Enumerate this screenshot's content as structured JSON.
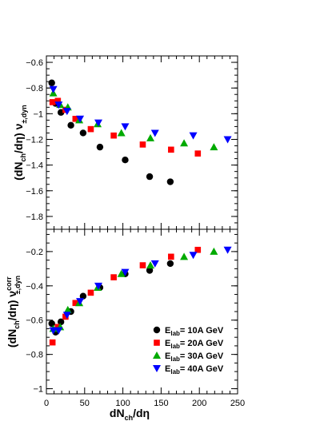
{
  "chart_data": [
    {
      "type": "scatter",
      "panel": "top",
      "ylabel": {
        "main": "(dN",
        "sub1": "ch",
        "mid": "/dη) ν",
        "sub2": "±,dyn"
      },
      "ylim": [
        -1.9,
        -0.55
      ],
      "xlim": [
        0,
        250
      ],
      "yticks": [
        -0.6,
        -0.8,
        -1.0,
        -1.2,
        -1.4,
        -1.6,
        -1.8
      ],
      "ytick_labels": [
        "−0.6",
        "−0.8",
        "−1",
        "−1.2",
        "−1.4",
        "−1.6",
        "−1.8"
      ],
      "grid": false,
      "series": [
        {
          "name": "10A GeV",
          "marker": "circle",
          "color": "#000000",
          "x": [
            7,
            12,
            19,
            32,
            48,
            70,
            103,
            135,
            162
          ],
          "y": [
            -0.76,
            -0.92,
            -0.99,
            -1.09,
            -1.15,
            -1.26,
            -1.36,
            -1.49,
            -1.53
          ]
        },
        {
          "name": "20A GeV",
          "marker": "square",
          "color": "#ff0000",
          "x": [
            8,
            15,
            25,
            38,
            58,
            88,
            126,
            163,
            198
          ],
          "y": [
            -0.91,
            -0.9,
            -0.97,
            -1.04,
            -1.12,
            -1.17,
            -1.24,
            -1.28,
            -1.31
          ]
        },
        {
          "name": "30A GeV",
          "marker": "triangle-up",
          "color": "#00aa00",
          "x": [
            9,
            18,
            28,
            43,
            67,
            98,
            136,
            180,
            219
          ],
          "y": [
            -0.84,
            -0.93,
            -0.95,
            -1.05,
            -1.08,
            -1.15,
            -1.19,
            -1.23,
            -1.26
          ]
        },
        {
          "name": "40A GeV",
          "marker": "triangle-down",
          "color": "#0000ff",
          "x": [
            9,
            16,
            27,
            44,
            68,
            103,
            142,
            192,
            237
          ],
          "y": [
            -0.81,
            -0.93,
            -0.98,
            -1.04,
            -1.07,
            -1.1,
            -1.15,
            -1.17,
            -1.2
          ]
        }
      ]
    },
    {
      "type": "scatter",
      "panel": "bottom",
      "ylabel": {
        "main": "(dN",
        "sub1": "ch",
        "mid": "/dη) ν",
        "sup": "corr",
        "sub2": "±,dyn"
      },
      "xlabel": {
        "main": "dN",
        "sub": "ch",
        "rest": "/dη"
      },
      "ylim": [
        -1.03,
        -0.07
      ],
      "xlim": [
        0,
        250
      ],
      "xticks": [
        0,
        50,
        100,
        150,
        200,
        250
      ],
      "xtick_labels": [
        "0",
        "50",
        "100",
        "150",
        "200",
        "250"
      ],
      "yticks": [
        -0.2,
        -0.4,
        -0.6,
        -0.8,
        -1.0
      ],
      "ytick_labels": [
        "−0.2",
        "−0.4",
        "−0.6",
        "−0.8",
        "−1"
      ],
      "grid": false,
      "legend": {
        "placement": "bottom-right",
        "prefix": "E",
        "sub": "lab",
        "sep": "= "
      },
      "series": [
        {
          "name": "10A GeV",
          "marker": "circle",
          "color": "#000000",
          "x": [
            7,
            12,
            19,
            32,
            48,
            70,
            103,
            135,
            162
          ],
          "y": [
            -0.62,
            -0.67,
            -0.61,
            -0.55,
            -0.46,
            -0.41,
            -0.33,
            -0.31,
            -0.27
          ]
        },
        {
          "name": "20A GeV",
          "marker": "square",
          "color": "#ff0000",
          "x": [
            8,
            15,
            25,
            38,
            58,
            88,
            126,
            163,
            198
          ],
          "y": [
            -0.73,
            -0.64,
            -0.58,
            -0.5,
            -0.44,
            -0.35,
            -0.28,
            -0.23,
            -0.19
          ]
        },
        {
          "name": "30A GeV",
          "marker": "triangle-up",
          "color": "#00aa00",
          "x": [
            9,
            18,
            28,
            43,
            67,
            98,
            136,
            180,
            219
          ],
          "y": [
            -0.65,
            -0.64,
            -0.54,
            -0.5,
            -0.41,
            -0.33,
            -0.28,
            -0.23,
            -0.2
          ]
        },
        {
          "name": "40A GeV",
          "marker": "triangle-down",
          "color": "#0000ff",
          "x": [
            9,
            16,
            27,
            44,
            68,
            103,
            142,
            192,
            237
          ],
          "y": [
            -0.66,
            -0.66,
            -0.57,
            -0.49,
            -0.4,
            -0.32,
            -0.27,
            -0.22,
            -0.19
          ]
        }
      ]
    }
  ]
}
